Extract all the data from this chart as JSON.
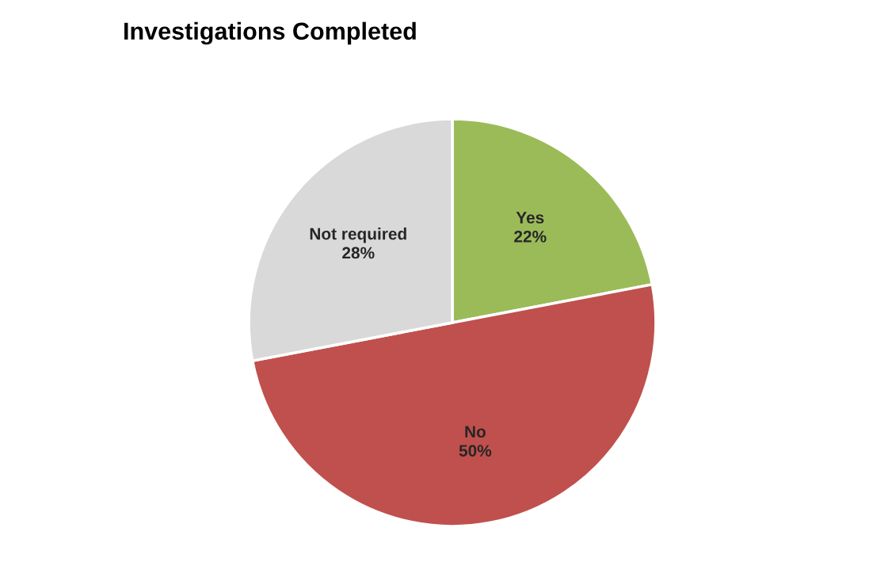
{
  "chart_data": {
    "type": "pie",
    "title": "Investigations Completed",
    "categories": [
      "Yes",
      "No",
      "Not required"
    ],
    "values": [
      22,
      50,
      28
    ],
    "value_labels": [
      "22%",
      "50%",
      "28%"
    ],
    "colors": [
      "#9bbb59",
      "#c0504d",
      "#d9d9d9"
    ],
    "legend": false
  }
}
